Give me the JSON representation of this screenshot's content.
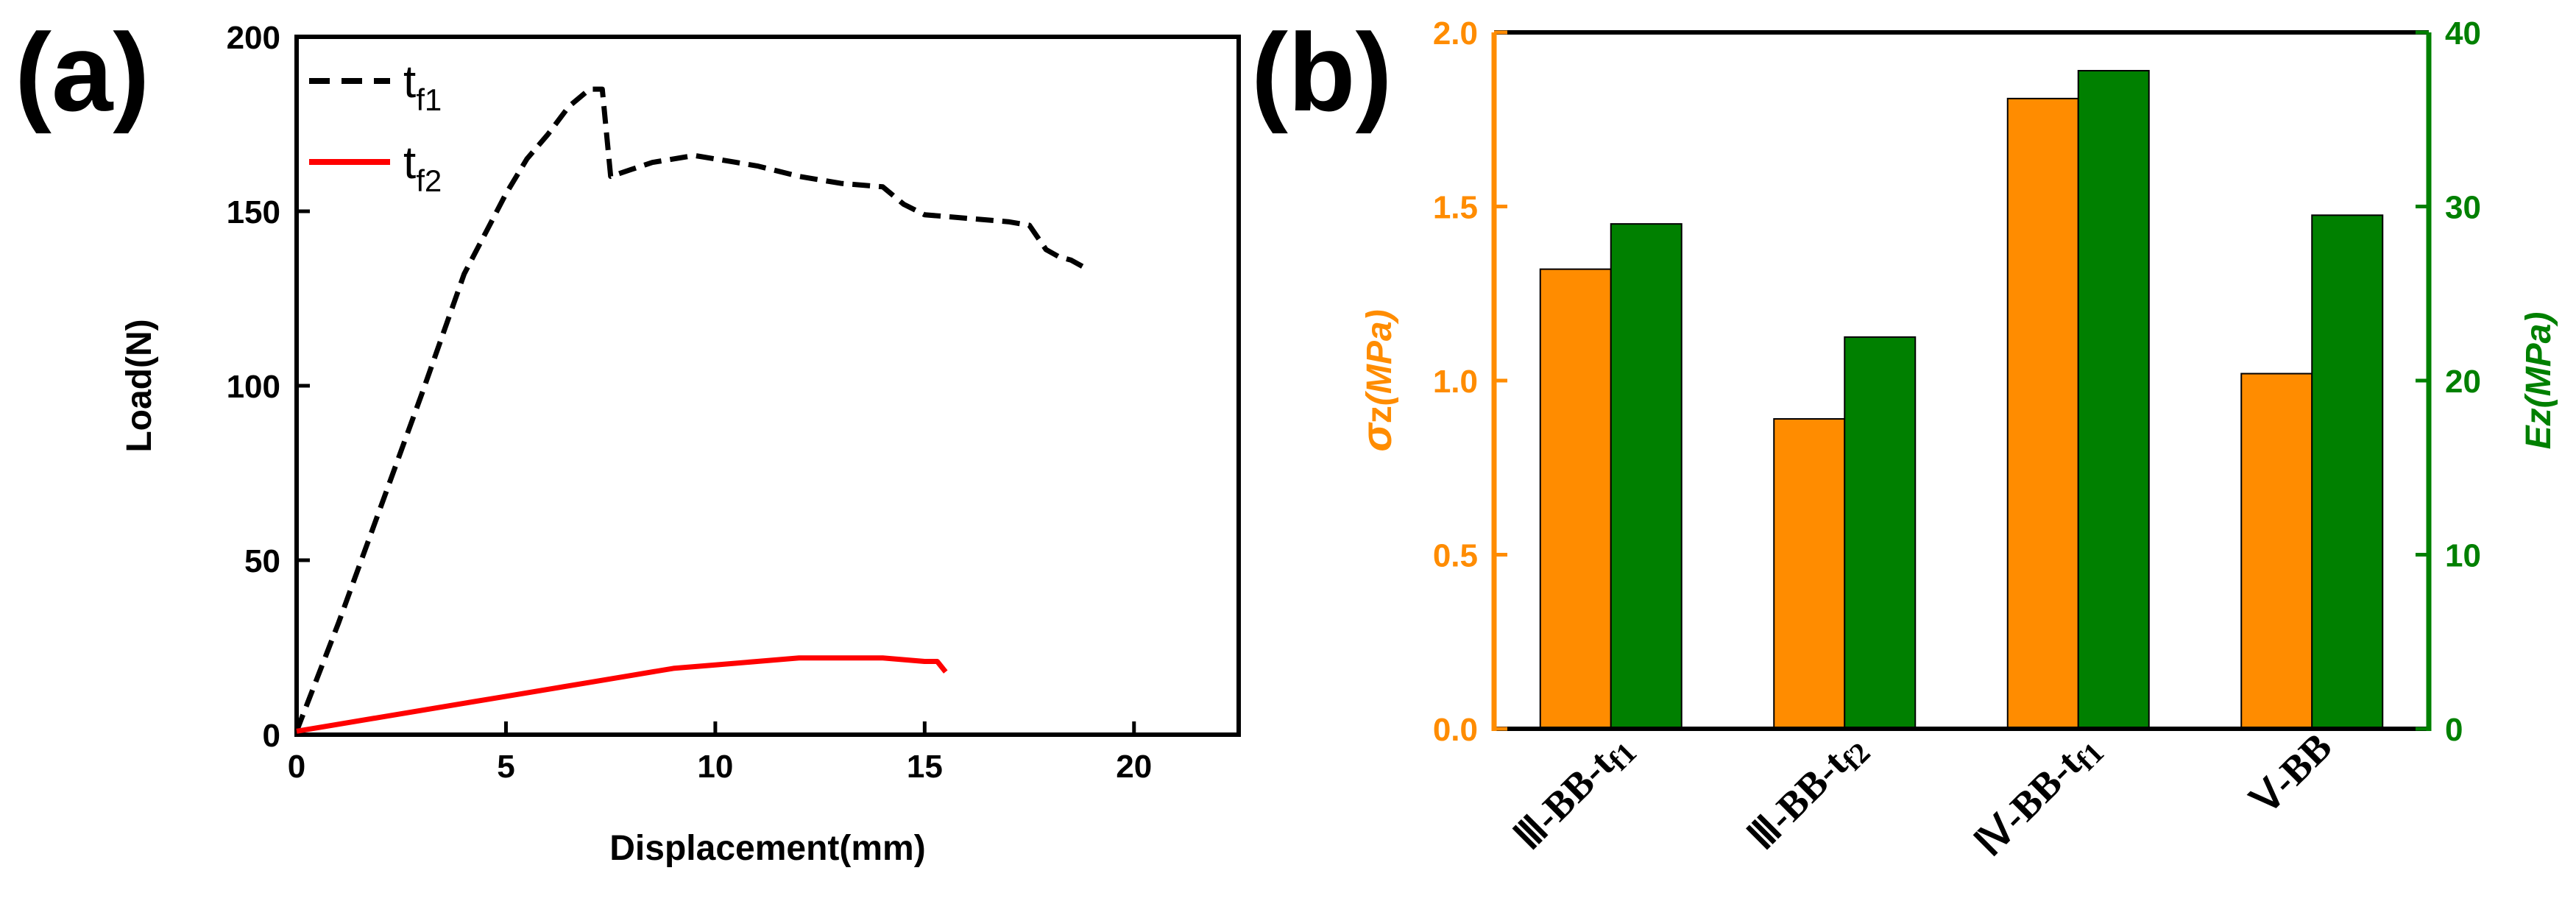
{
  "chart_data": [
    {
      "panel": "(a)",
      "type": "line",
      "xlabel": "Displacement(mm)",
      "ylabel": "Load(N)",
      "xlim": [
        0,
        22.5
      ],
      "ylim": [
        0,
        200
      ],
      "xticks": [
        0,
        5,
        10,
        15,
        20
      ],
      "yticks": [
        0,
        50,
        100,
        150,
        200
      ],
      "legend": "top-left",
      "grid": false,
      "series": [
        {
          "name": "t",
          "name_sub": "f1",
          "color": "#000000",
          "style": "dashed",
          "x": [
            0,
            1,
            2,
            3,
            4,
            5,
            5.5,
            6,
            6.5,
            7,
            7.3,
            7.5,
            8,
            8.5,
            9,
            9.5,
            10,
            10.5,
            11,
            12,
            13,
            14,
            14.5,
            15,
            16,
            17,
            17.5,
            17.9,
            18.2,
            18.5,
            18.8
          ],
          "y": [
            1,
            32,
            65,
            98,
            132,
            155,
            165,
            172,
            180,
            185,
            185,
            160,
            162,
            164,
            165,
            166,
            165,
            164,
            163,
            160,
            158,
            157,
            152,
            149,
            148,
            147,
            146,
            139,
            137,
            136,
            134
          ]
        },
        {
          "name": "t",
          "name_sub": "f2",
          "color": "#ff0000",
          "style": "solid",
          "x": [
            0,
            1,
            2,
            3,
            4,
            5,
            6,
            7,
            8,
            9,
            10,
            11,
            12,
            13,
            14,
            15,
            15.3,
            15.5
          ],
          "y": [
            1,
            3,
            5,
            7,
            9,
            11,
            13,
            15,
            17,
            19,
            20,
            21,
            22,
            22,
            22,
            21,
            21,
            18
          ]
        }
      ]
    },
    {
      "panel": "(b)",
      "type": "bar",
      "categories": [
        "Ⅲ-BB-tf1",
        "Ⅲ-BB-tf2",
        "Ⅳ-BB-tf1",
        "Ⅴ-BB"
      ],
      "category_parts": [
        {
          "base": "Ⅲ-BB-t",
          "sub": "f1"
        },
        {
          "base": "Ⅲ-BB-t",
          "sub": "f2"
        },
        {
          "base": "Ⅳ-BB-t",
          "sub": "f1"
        },
        {
          "base": "Ⅴ-BB",
          "sub": ""
        }
      ],
      "ylabel_left": {
        "sym": "σ",
        "sub": "z",
        "unit": "(MPa)"
      },
      "ylabel_right": {
        "sym": "E",
        "sub": "z",
        "unit": "(MPa)"
      },
      "ylim_left": [
        0,
        2.0
      ],
      "ylim_right": [
        0,
        40
      ],
      "yticks_left": [
        "0.0",
        "0.5",
        "1.0",
        "1.5",
        "2.0"
      ],
      "yticks_right": [
        "0",
        "10",
        "20",
        "30",
        "40"
      ],
      "series": [
        {
          "axis": "left",
          "color": "#ff8c00",
          "values": [
            1.32,
            0.89,
            1.81,
            1.02
          ]
        },
        {
          "axis": "right",
          "color": "#008000",
          "values": [
            29.0,
            22.5,
            37.8,
            29.5
          ]
        }
      ],
      "left_axis_color": "#ff8c00",
      "right_axis_color": "#008000"
    }
  ]
}
